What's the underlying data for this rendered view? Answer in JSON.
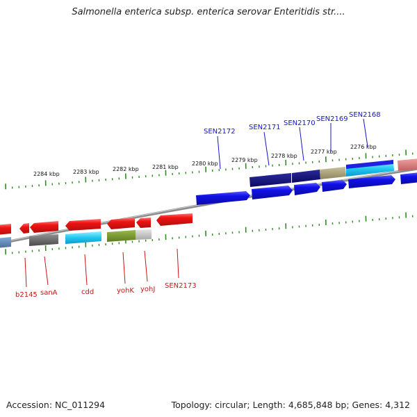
{
  "title": "Salmonella enterica subsp. enterica serovar Enteritidis str....",
  "footer": {
    "accession": "Accession: NC_011294",
    "summary": "Topology: circular; Length: 4,685,848 bp; Genes: 4,312"
  },
  "colors": {
    "backbone": "#8c8c8c",
    "tick": "#2e8b22",
    "forward_label": "#1414c8",
    "reverse_label": "#c81414",
    "forward_gene": "#1010e6",
    "reverse_gene": "#ee1414"
  },
  "scale_labels": [
    {
      "label": "2284 kbp"
    },
    {
      "label": "2283 kbp"
    },
    {
      "label": "2282 kbp"
    },
    {
      "label": "2281 kbp"
    },
    {
      "label": "2280 kbp"
    },
    {
      "label": "2279 kbp"
    },
    {
      "label": "2278 kbp"
    },
    {
      "label": "2277 kbp"
    },
    {
      "label": "2276 kbp"
    }
  ],
  "forward_gene_labels": [
    {
      "label": "SEN2172"
    },
    {
      "label": "SEN2171"
    },
    {
      "label": "SEN2170"
    },
    {
      "label": "SEN2169"
    },
    {
      "label": "SEN2168"
    }
  ],
  "reverse_gene_labels": [
    {
      "label": "b2145"
    },
    {
      "label": "sanA"
    },
    {
      "label": "cdd"
    },
    {
      "label": "yohK"
    },
    {
      "label": "yohJ"
    },
    {
      "label": "SEN2173"
    }
  ]
}
